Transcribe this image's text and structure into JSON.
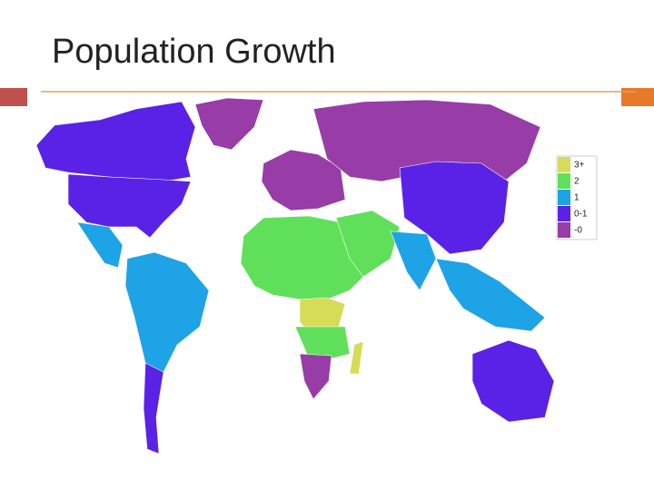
{
  "slide": {
    "title": "Population Growth"
  },
  "legend": {
    "items": [
      {
        "label": "3+",
        "color": "#d6dc57"
      },
      {
        "label": "2",
        "color": "#60e05a"
      },
      {
        "label": "1",
        "color": "#1ea3e6"
      },
      {
        "label": "0-1",
        "color": "#5a22e6"
      },
      {
        "label": "-0",
        "color": "#983ca8"
      }
    ]
  }
}
